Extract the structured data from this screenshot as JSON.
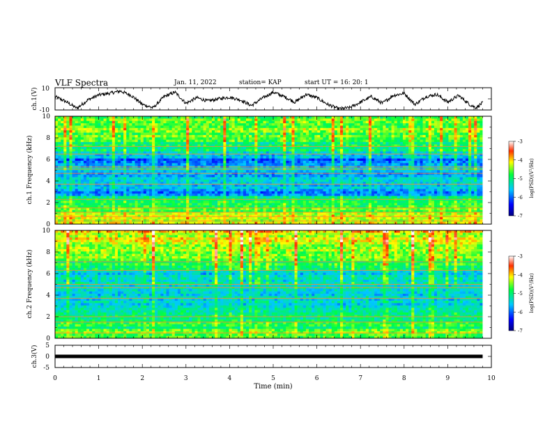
{
  "header": {
    "title": "VLF Spectra",
    "date": "Jan. 11, 2022",
    "station": "station= KAP",
    "start": "start  UT =   16: 20: 1"
  },
  "chart_data": [
    {
      "type": "line",
      "name": "waveform-ch1",
      "ylabel": "ch.1(V)",
      "ylim": [
        -10,
        10
      ],
      "yticks": [
        "10",
        "-10"
      ],
      "xlim": [
        0,
        10
      ],
      "x_end": 9.8,
      "waveform_points": [
        [
          0.0,
          2.0
        ],
        [
          0.25,
          -2.5
        ],
        [
          0.5,
          -8.5
        ],
        [
          0.75,
          -1.0
        ],
        [
          1.0,
          3.5
        ],
        [
          1.25,
          5.0
        ],
        [
          1.5,
          7.0
        ],
        [
          1.75,
          3.0
        ],
        [
          2.0,
          -5.0
        ],
        [
          2.25,
          -8.0
        ],
        [
          2.5,
          2.0
        ],
        [
          2.75,
          6.0
        ],
        [
          3.0,
          -4.0
        ],
        [
          3.25,
          1.0
        ],
        [
          3.5,
          -2.0
        ],
        [
          3.75,
          0.0
        ],
        [
          4.0,
          1.5
        ],
        [
          4.25,
          -1.0
        ],
        [
          4.5,
          -6.0
        ],
        [
          4.75,
          0.5
        ],
        [
          5.0,
          6.0
        ],
        [
          5.25,
          2.0
        ],
        [
          5.5,
          -3.0
        ],
        [
          5.75,
          4.0
        ],
        [
          6.0,
          1.0
        ],
        [
          6.25,
          -5.0
        ],
        [
          6.5,
          -9.0
        ],
        [
          6.75,
          -8.0
        ],
        [
          7.0,
          -3.0
        ],
        [
          7.25,
          2.0
        ],
        [
          7.5,
          -4.0
        ],
        [
          7.75,
          3.0
        ],
        [
          8.0,
          5.0
        ],
        [
          8.25,
          -5.0
        ],
        [
          8.5,
          2.0
        ],
        [
          8.75,
          4.0
        ],
        [
          9.0,
          -3.0
        ],
        [
          9.25,
          3.0
        ],
        [
          9.5,
          -5.0
        ],
        [
          9.65,
          -8.0
        ],
        [
          9.8,
          -3.5
        ]
      ]
    },
    {
      "type": "heatmap",
      "name": "spectrogram-ch1",
      "ylabel": "ch.1\nFrequency (kHz)",
      "ylim": [
        0,
        10
      ],
      "yticks": [
        "0",
        "2",
        "4",
        "6",
        "8",
        "10"
      ],
      "xlim": [
        0,
        10
      ],
      "x_end": 9.8,
      "colorbar": {
        "label": "log(PSD)(V²/Hz)",
        "range": [
          -7,
          -3
        ],
        "ticks": [
          "-3",
          "-4",
          "-5",
          "-6",
          "-7"
        ]
      },
      "freq_profile_log_psd": [
        [
          0.0,
          -4.3
        ],
        [
          0.5,
          -4.2
        ],
        [
          1.0,
          -4.5
        ],
        [
          1.5,
          -4.7
        ],
        [
          2.0,
          -4.9
        ],
        [
          2.5,
          -5.3
        ],
        [
          3.0,
          -6.0
        ],
        [
          3.5,
          -5.6
        ],
        [
          4.0,
          -5.5
        ],
        [
          4.5,
          -5.8
        ],
        [
          5.0,
          -5.3
        ],
        [
          5.5,
          -5.7
        ],
        [
          6.0,
          -5.9
        ],
        [
          6.5,
          -5.4
        ],
        [
          7.0,
          -5.0
        ],
        [
          7.5,
          -4.9
        ],
        [
          8.0,
          -4.7
        ],
        [
          8.5,
          -4.6
        ],
        [
          9.0,
          -4.5
        ],
        [
          9.5,
          -4.6
        ],
        [
          10.0,
          -4.6
        ]
      ],
      "line_frequencies_khz": [
        0.3,
        0.7,
        1.1,
        1.5,
        2.3,
        3.7,
        4.7,
        5.1,
        5.3,
        6.5,
        7.2
      ]
    },
    {
      "type": "heatmap",
      "name": "spectrogram-ch2",
      "ylabel": "ch.2\nFrequency (kHz)",
      "ylim": [
        0,
        10
      ],
      "yticks": [
        "0",
        "2",
        "4",
        "6",
        "8",
        "10"
      ],
      "xlim": [
        0,
        10
      ],
      "x_end": 9.8,
      "colorbar": {
        "label": "log(PSD)(V²/Hz)",
        "range": [
          -7,
          -3
        ],
        "ticks": [
          "-3",
          "-4",
          "-5",
          "-6",
          "-7"
        ]
      },
      "freq_profile_log_psd": [
        [
          0.0,
          -4.6
        ],
        [
          0.5,
          -4.6
        ],
        [
          1.0,
          -4.9
        ],
        [
          1.5,
          -4.8
        ],
        [
          2.0,
          -5.0
        ],
        [
          2.5,
          -5.2
        ],
        [
          3.0,
          -5.6
        ],
        [
          3.5,
          -5.3
        ],
        [
          4.0,
          -5.5
        ],
        [
          4.5,
          -5.6
        ],
        [
          5.0,
          -5.2
        ],
        [
          5.5,
          -5.3
        ],
        [
          6.0,
          -5.4
        ],
        [
          6.5,
          -4.9
        ],
        [
          7.0,
          -4.8
        ],
        [
          7.5,
          -4.5
        ],
        [
          8.0,
          -4.4
        ],
        [
          8.5,
          -4.3
        ],
        [
          9.0,
          -4.3
        ],
        [
          9.5,
          -4.2
        ],
        [
          10.0,
          -4.1
        ]
      ],
      "line_frequencies_khz": [
        0.5,
        1.5,
        2.0,
        3.7,
        4.7,
        5.0,
        6.3,
        7.1
      ]
    },
    {
      "type": "line",
      "name": "waveform-ch3",
      "ylabel": "ch.3(V)",
      "ylim": [
        -5,
        5
      ],
      "yticks": [
        "5",
        "0",
        "-5"
      ],
      "xlim": [
        0,
        10
      ],
      "x_end": 9.8,
      "band_value_v": 0,
      "xlabel": "Time (min)",
      "xticks": [
        "0",
        "1",
        "2",
        "3",
        "4",
        "5",
        "6",
        "7",
        "8",
        "9",
        "10"
      ]
    }
  ]
}
